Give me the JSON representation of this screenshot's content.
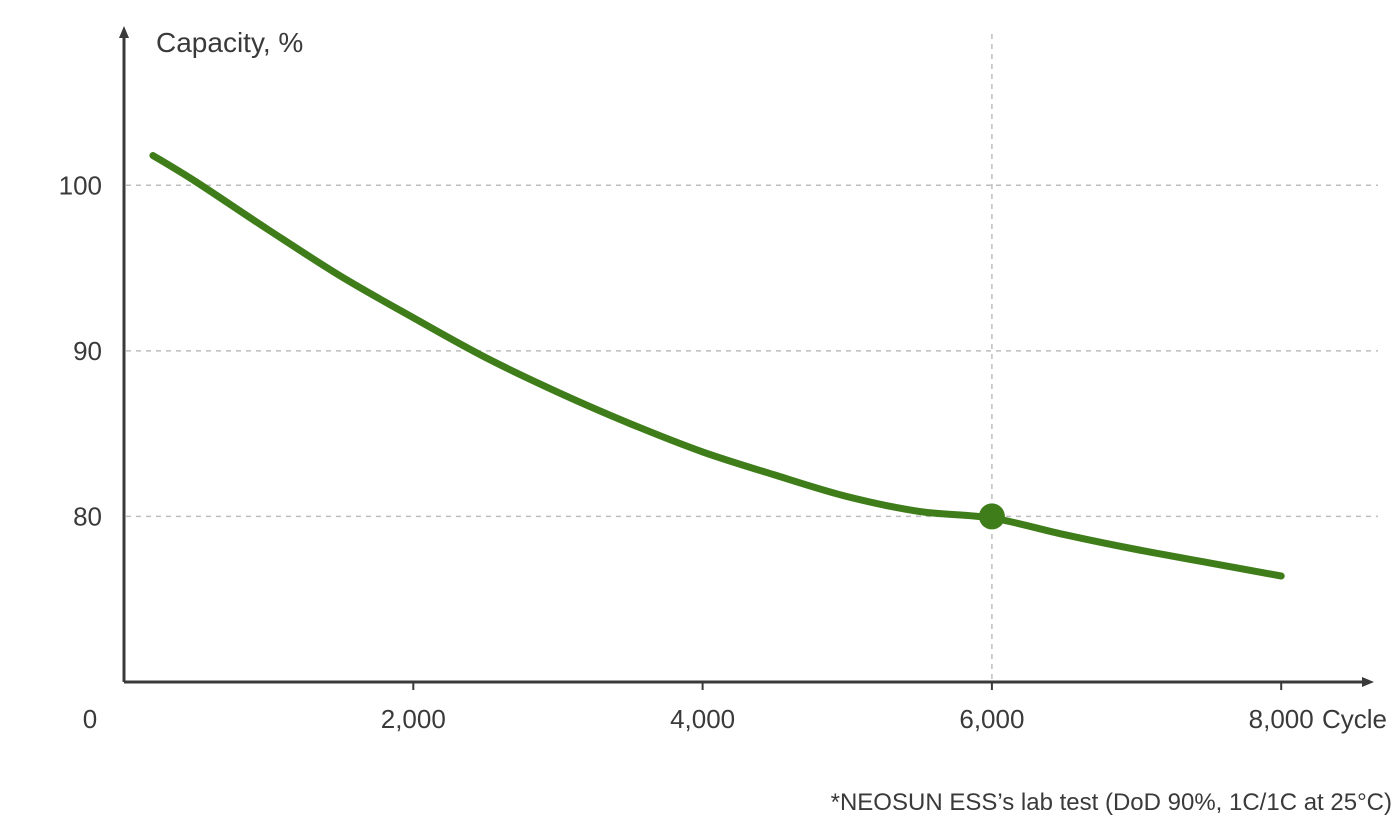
{
  "chart_data": {
    "type": "line",
    "ylabel": "Capacity, %",
    "xlabel": "Cycle",
    "origin_label": "0",
    "x_ticks": [
      {
        "value": 2000,
        "label": "2,000"
      },
      {
        "value": 4000,
        "label": "4,000"
      },
      {
        "value": 6000,
        "label": "6,000"
      },
      {
        "value": 8000,
        "label": "8,000"
      }
    ],
    "y_ticks": [
      {
        "value": 80,
        "label": "80"
      },
      {
        "value": 90,
        "label": "90"
      },
      {
        "value": 100,
        "label": "100"
      }
    ],
    "xlim": [
      0,
      8600
    ],
    "ylim": [
      70,
      109.5
    ],
    "grid": "dashed at y ticks and at x = 6000",
    "series": [
      {
        "color": "#3f7d1a",
        "x": [
          200,
          500,
          1000,
          1500,
          2000,
          2500,
          3000,
          3500,
          4000,
          4500,
          5000,
          5500,
          6000,
          6500,
          7000,
          7500,
          8000
        ],
        "y": [
          101.8,
          100.2,
          97.3,
          94.5,
          92.0,
          89.6,
          87.5,
          85.6,
          83.9,
          82.5,
          81.2,
          80.3,
          79.9,
          78.9,
          78.0,
          77.2,
          76.4
        ]
      }
    ],
    "highlight_point": {
      "x": 6000,
      "y": 80,
      "color": "#3f7d1a"
    },
    "footnote": "*NEOSUN ESS’s lab test (DoD 90%, 1C/1C at 25°C)"
  }
}
